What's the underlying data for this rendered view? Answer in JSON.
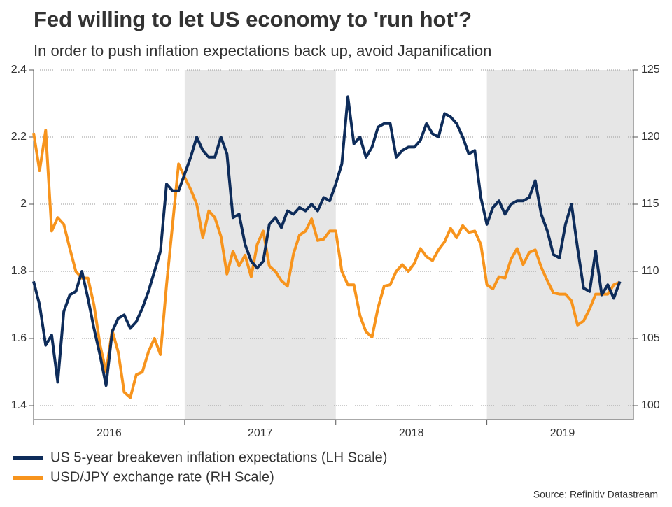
{
  "chart_data": {
    "type": "line",
    "title": "Fed willing to let US economy to 'run hot'?",
    "subtitle": "In order to push inflation expectations back up, avoid Japanification",
    "source": "Source: Refinitiv Datastream",
    "x": [
      2016,
      2016.04,
      2016.08,
      2016.12,
      2016.16,
      2016.2,
      2016.24,
      2016.28,
      2016.32,
      2016.36,
      2016.4,
      2016.44,
      2016.48,
      2016.52,
      2016.56,
      2016.6,
      2016.64,
      2016.68,
      2016.72,
      2016.76,
      2016.8,
      2016.84,
      2016.88,
      2016.92,
      2016.96,
      2017,
      2017.04,
      2017.08,
      2017.12,
      2017.16,
      2017.2,
      2017.24,
      2017.28,
      2017.32,
      2017.36,
      2017.4,
      2017.44,
      2017.48,
      2017.52,
      2017.56,
      2017.6,
      2017.64,
      2017.68,
      2017.72,
      2017.76,
      2017.8,
      2017.84,
      2017.88,
      2017.92,
      2017.96,
      2018,
      2018.04,
      2018.08,
      2018.12,
      2018.16,
      2018.2,
      2018.24,
      2018.28,
      2018.32,
      2018.36,
      2018.4,
      2018.44,
      2018.48,
      2018.52,
      2018.56,
      2018.6,
      2018.64,
      2018.68,
      2018.72,
      2018.76,
      2018.8,
      2018.84,
      2018.88,
      2018.92,
      2018.96,
      2019,
      2019.04,
      2019.08,
      2019.12,
      2019.16,
      2019.2,
      2019.24,
      2019.28,
      2019.32,
      2019.36,
      2019.4,
      2019.44,
      2019.48,
      2019.52,
      2019.56,
      2019.6,
      2019.64,
      2019.68,
      2019.72,
      2019.76,
      2019.8,
      2019.84,
      2019.88
    ],
    "xlim": [
      2016,
      2019.97
    ],
    "xticks": [
      {
        "value": 2016.5,
        "label": "2016"
      },
      {
        "value": 2017.5,
        "label": "2017"
      },
      {
        "value": 2018.5,
        "label": "2018"
      },
      {
        "value": 2019.5,
        "label": "2019"
      }
    ],
    "ylim": [
      1.4,
      2.4
    ],
    "yticks": [
      1.4,
      1.6,
      1.8,
      2.0,
      2.2,
      2.4
    ],
    "y2lim": [
      100,
      125
    ],
    "y2ticks": [
      100,
      105,
      110,
      115,
      120,
      125
    ],
    "grid": true,
    "legend": "bottom",
    "shade": [
      [
        2017,
        2018
      ],
      [
        2019,
        2019.97
      ]
    ],
    "series": [
      {
        "name": "US 5-year breakeven inflation expectations (LH Scale)",
        "color": "#0e2c5a",
        "axis": "y",
        "values": [
          1.77,
          1.7,
          1.58,
          1.61,
          1.47,
          1.68,
          1.73,
          1.74,
          1.8,
          1.72,
          1.63,
          1.55,
          1.46,
          1.62,
          1.66,
          1.67,
          1.63,
          1.65,
          1.69,
          1.74,
          1.8,
          1.86,
          2.06,
          2.04,
          2.04,
          2.09,
          2.14,
          2.2,
          2.16,
          2.14,
          2.14,
          2.2,
          2.15,
          1.96,
          1.97,
          1.88,
          1.83,
          1.81,
          1.83,
          1.94,
          1.96,
          1.93,
          1.98,
          1.97,
          1.99,
          1.98,
          2.0,
          1.98,
          2.02,
          2.01,
          2.06,
          2.12,
          2.32,
          2.18,
          2.2,
          2.14,
          2.17,
          2.23,
          2.24,
          2.24,
          2.14,
          2.16,
          2.17,
          2.17,
          2.19,
          2.24,
          2.21,
          2.2,
          2.27,
          2.26,
          2.24,
          2.2,
          2.15,
          2.16,
          2.02,
          1.94,
          1.99,
          2.01,
          1.97,
          2.0,
          2.01,
          2.01,
          2.02,
          2.07,
          1.97,
          1.92,
          1.85,
          1.84,
          1.94,
          2.0,
          1.87,
          1.75,
          1.74,
          1.86,
          1.73,
          1.76,
          1.72,
          1.77
        ]
      },
      {
        "name": "USD/JPY exchange rate (RH Scale)",
        "color": "#f7941d",
        "axis": "y2",
        "values": [
          120.3,
          117.5,
          120.5,
          113.0,
          114.0,
          113.5,
          111.7,
          110.0,
          109.5,
          109.5,
          107.5,
          104.5,
          102.5,
          105.6,
          104.0,
          101.0,
          100.6,
          102.3,
          102.5,
          104.0,
          105.0,
          103.8,
          109.0,
          113.5,
          118.0,
          117.0,
          116.1,
          115.0,
          112.5,
          114.5,
          114.0,
          112.6,
          109.8,
          111.5,
          110.4,
          111.2,
          109.6,
          112.0,
          113.0,
          110.4,
          110.0,
          109.3,
          108.9,
          111.3,
          112.7,
          113.0,
          113.9,
          112.3,
          112.4,
          113.0,
          113.0,
          110.0,
          109.0,
          109.0,
          106.7,
          105.5,
          105.1,
          107.3,
          108.9,
          109.0,
          110.0,
          110.5,
          110.0,
          110.6,
          111.7,
          111.1,
          110.8,
          111.6,
          112.2,
          113.2,
          112.5,
          113.4,
          112.9,
          113.0,
          112.0,
          109.0,
          108.7,
          109.6,
          109.5,
          110.9,
          111.7,
          110.5,
          111.4,
          111.6,
          110.3,
          109.3,
          108.4,
          108.3,
          108.3,
          107.8,
          106.0,
          106.3,
          107.2,
          108.3,
          108.3,
          108.3,
          109.0,
          109.2
        ]
      }
    ]
  }
}
